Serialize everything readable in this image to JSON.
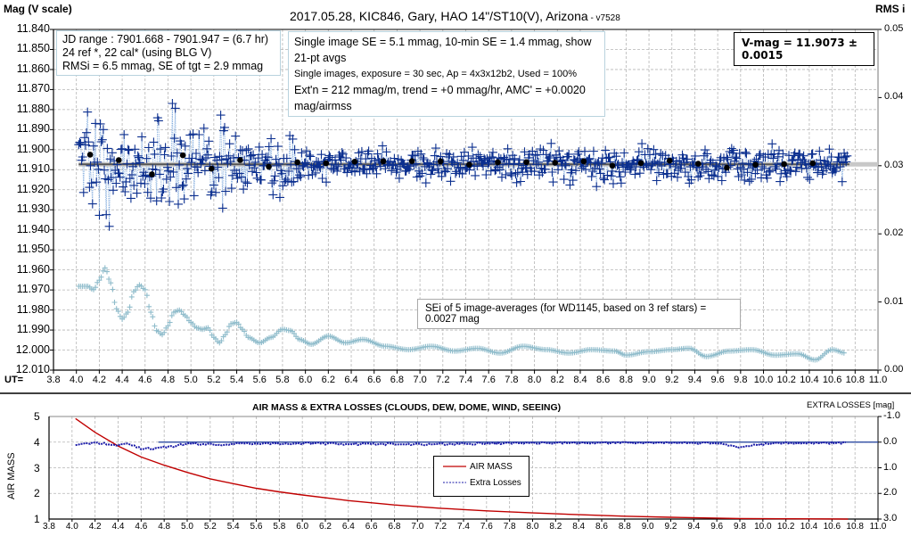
{
  "header": {
    "title": "2017.05.28,  KIC846,  Gary, HAO 14\"/ST10(V), Arizona",
    "version": " - v7528",
    "left_axis_title": "Mag (V scale)",
    "right_axis_title": "RMS i"
  },
  "info_box_1": {
    "line1": "JD range : 7901.668 - 7901.947 = (6.7 hr)",
    "line2": "24 ref *, 22 cal* (using BLG V)",
    "line3": "RMSi = 6.5 mmag, SE of tgt = 2.9 mmag"
  },
  "info_box_2": {
    "line1": "Single image SE = 5.1 mmag, 10-min SE = 1.4 mmag, show 21-pt avgs",
    "line2": "Single images, exposure = 30 sec, Ap = 4x3x12b2, Used = 100%",
    "line3": "Ext'n = 212 mmag/m, trend = +0 mmag/hr, AMC' = +0.0020 mag/airmss"
  },
  "vmag_box": {
    "text": "V-mag = 11.9073 ± 0.0015"
  },
  "se_box": {
    "text": "SEi of 5 image-averages (for WD1145, based on 3 ref stars) = 0.0027 mag"
  },
  "main_chart": {
    "x_prefix": "UT=",
    "x_ticks": [
      "3.8",
      "4.0",
      "4.2",
      "4.4",
      "4.6",
      "4.8",
      "5.0",
      "5.2",
      "5.4",
      "5.6",
      "5.8",
      "6.0",
      "6.2",
      "6.4",
      "6.6",
      "6.8",
      "7.0",
      "7.2",
      "7.4",
      "7.6",
      "7.8",
      "8.0",
      "8.2",
      "8.4",
      "8.6",
      "8.8",
      "9.0",
      "9.2",
      "9.4",
      "9.6",
      "9.8",
      "10.0",
      "10.2",
      "10.4",
      "10.6",
      "10.8",
      "11.0"
    ],
    "y_ticks": [
      "11.840",
      "11.850",
      "11.860",
      "11.870",
      "11.880",
      "11.890",
      "11.900",
      "11.910",
      "11.920",
      "11.930",
      "11.940",
      "11.950",
      "11.960",
      "11.970",
      "11.980",
      "11.990",
      "12.000",
      "12.010"
    ],
    "y2_ticks": [
      "0.05",
      "0.04",
      "0.03",
      "0.02",
      "0.01",
      "0.00"
    ]
  },
  "lower_chart": {
    "title": "AIR MASS & EXTRA LOSSES (CLOUDS, DEW, DOME, WIND, SEEING)",
    "left_axis_title": "AIR MASS",
    "right_axis_title": "EXTRA LOSSES [mag]",
    "y_ticks": [
      "5",
      "4",
      "3",
      "2",
      "1"
    ],
    "y2_ticks": [
      "-1.0",
      "0.0",
      "1.0",
      "2.0",
      "3.0"
    ],
    "x_ticks": [
      "3.8",
      "4.0",
      "4.2",
      "4.4",
      "4.6",
      "4.8",
      "5.0",
      "5.2",
      "5.4",
      "5.6",
      "5.8",
      "6.0",
      "6.2",
      "6.4",
      "6.6",
      "6.8",
      "7.0",
      "7.2",
      "7.4",
      "7.6",
      "7.8",
      "8.0",
      "8.2",
      "8.4",
      "8.6",
      "8.8",
      "9.0",
      "9.2",
      "9.4",
      "9.6",
      "9.8",
      "10.0",
      "10.2",
      "10.4",
      "10.6",
      "10.8",
      "11.0"
    ],
    "legend": {
      "airmass": "AIR MASS",
      "extra_losses": "Extra Losses"
    }
  },
  "colors": {
    "single_images": "#0b2f8f",
    "connect_line": "#6f9fd8",
    "averages": "#000000",
    "mean_line": "#555555",
    "rms_series": "#8fbccb",
    "airmass": "#c00000",
    "extra_losses": "#1a1aa8",
    "grid": "#b5b5b5"
  },
  "chart_data": [
    {
      "type": "scatter",
      "title": "2017.05.28, KIC846, Gary, HAO 14\"/ST10(V), Arizona - v7528",
      "xlabel": "UT",
      "ylabel": "Mag (V scale)",
      "y2label": "RMS i",
      "xlim": [
        3.8,
        11.0
      ],
      "ylim": [
        12.01,
        11.84
      ],
      "y2lim": [
        0.0,
        0.05
      ],
      "grid": true,
      "mean_mag": 11.9073,
      "mean_mag_se": 0.0015,
      "series": [
        {
          "name": "21-pt averages",
          "x": [
            4.12,
            4.37,
            4.66,
            4.93,
            5.18,
            5.43,
            5.68,
            5.93,
            6.18,
            6.43,
            6.68,
            6.93,
            7.18,
            7.43,
            7.68,
            7.93,
            8.18,
            8.43,
            8.68,
            8.93,
            9.18,
            9.43,
            9.68,
            9.93,
            10.18,
            10.43
          ],
          "y": [
            11.9025,
            11.9052,
            11.9123,
            11.9028,
            11.9095,
            11.9052,
            11.9085,
            11.9063,
            11.9068,
            11.906,
            11.9058,
            11.9057,
            11.9058,
            11.9075,
            11.9063,
            11.9062,
            11.9065,
            11.9058,
            11.908,
            11.9067,
            11.9055,
            11.907,
            11.909,
            11.9075,
            11.9072,
            11.9068
          ]
        },
        {
          "name": "RMS i (right axis)",
          "x": [
            4.02,
            4.1,
            4.15,
            4.2,
            4.25,
            4.3,
            4.35,
            4.4,
            4.45,
            4.5,
            4.55,
            4.6,
            4.65,
            4.7,
            4.75,
            4.8,
            4.85,
            4.9,
            4.95,
            5.0,
            5.05,
            5.1,
            5.15,
            5.2,
            5.25,
            5.3,
            5.35,
            5.4,
            5.45,
            5.5,
            5.6,
            5.7,
            5.8,
            5.87,
            5.95,
            6.05,
            6.2,
            6.35,
            6.5,
            6.7,
            6.9,
            7.1,
            7.3,
            7.5,
            7.7,
            7.9,
            8.1,
            8.3,
            8.5,
            8.7,
            8.8,
            9.0,
            9.2,
            9.35,
            9.5,
            9.7,
            9.9,
            10.1,
            10.3,
            10.45,
            10.6,
            10.72
          ],
          "y": [
            0.0123,
            0.0123,
            0.0118,
            0.0132,
            0.015,
            0.0128,
            0.009,
            0.0075,
            0.0085,
            0.0115,
            0.0125,
            0.0118,
            0.0085,
            0.0058,
            0.0052,
            0.0065,
            0.0085,
            0.0088,
            0.008,
            0.007,
            0.0062,
            0.006,
            0.0062,
            0.0048,
            0.004,
            0.0052,
            0.0068,
            0.007,
            0.006,
            0.0048,
            0.004,
            0.0048,
            0.006,
            0.0058,
            0.0045,
            0.0038,
            0.005,
            0.004,
            0.0045,
            0.0035,
            0.003,
            0.0035,
            0.0028,
            0.0032,
            0.0025,
            0.0035,
            0.003,
            0.0025,
            0.003,
            0.0028,
            0.0022,
            0.0027,
            0.003,
            0.0032,
            0.002,
            0.0028,
            0.003,
            0.0022,
            0.0024,
            0.0015,
            0.003,
            0.0025
          ]
        },
        {
          "name": "Single images",
          "note": "~780 points, UT 4.02-10.73, scatter ~±0.03 mag early, ~±0.008 mag late, centered on 11.9073",
          "x_range": [
            4.02,
            10.73
          ],
          "center": 11.9073
        }
      ]
    },
    {
      "type": "line",
      "title": "AIR MASS & EXTRA LOSSES (CLOUDS, DEW, DOME, WIND, SEEING)",
      "xlabel": "UT",
      "ylabel": "AIR MASS",
      "y2label": "EXTRA LOSSES [mag]",
      "xlim": [
        3.8,
        11.0
      ],
      "ylim": [
        1,
        5
      ],
      "y2lim": [
        3.0,
        -1.0
      ],
      "legend": [
        "AIR MASS",
        "Extra Losses"
      ],
      "legend_position": "center",
      "series": [
        {
          "name": "AIR MASS",
          "x": [
            4.03,
            4.2,
            4.4,
            4.6,
            4.8,
            5.0,
            5.2,
            5.4,
            5.6,
            5.8,
            6.0,
            6.4,
            6.8,
            7.2,
            7.6,
            8.0,
            8.4,
            8.8,
            9.2,
            9.8,
            10.2,
            10.74
          ],
          "y": [
            4.92,
            4.38,
            3.85,
            3.42,
            3.1,
            2.82,
            2.57,
            2.38,
            2.2,
            2.06,
            1.94,
            1.72,
            1.55,
            1.42,
            1.32,
            1.24,
            1.17,
            1.11,
            1.07,
            1.02,
            1.01,
            1.0
          ]
        },
        {
          "name": "Extra Losses",
          "x": [
            4.03,
            4.2,
            4.4,
            4.5,
            4.6,
            4.7,
            4.8,
            4.9,
            5.0,
            5.3,
            5.5,
            6.0,
            6.7,
            7.2,
            8.0,
            9.0,
            9.6,
            9.8,
            9.9,
            10.2,
            10.74
          ],
          "y": [
            0.08,
            0.02,
            0.12,
            0.05,
            0.25,
            0.25,
            0.2,
            0.15,
            0.05,
            0.1,
            0.05,
            0.05,
            0.08,
            0.08,
            0.03,
            0.02,
            0.05,
            0.2,
            0.12,
            0.03,
            0.03
          ]
        }
      ]
    }
  ]
}
